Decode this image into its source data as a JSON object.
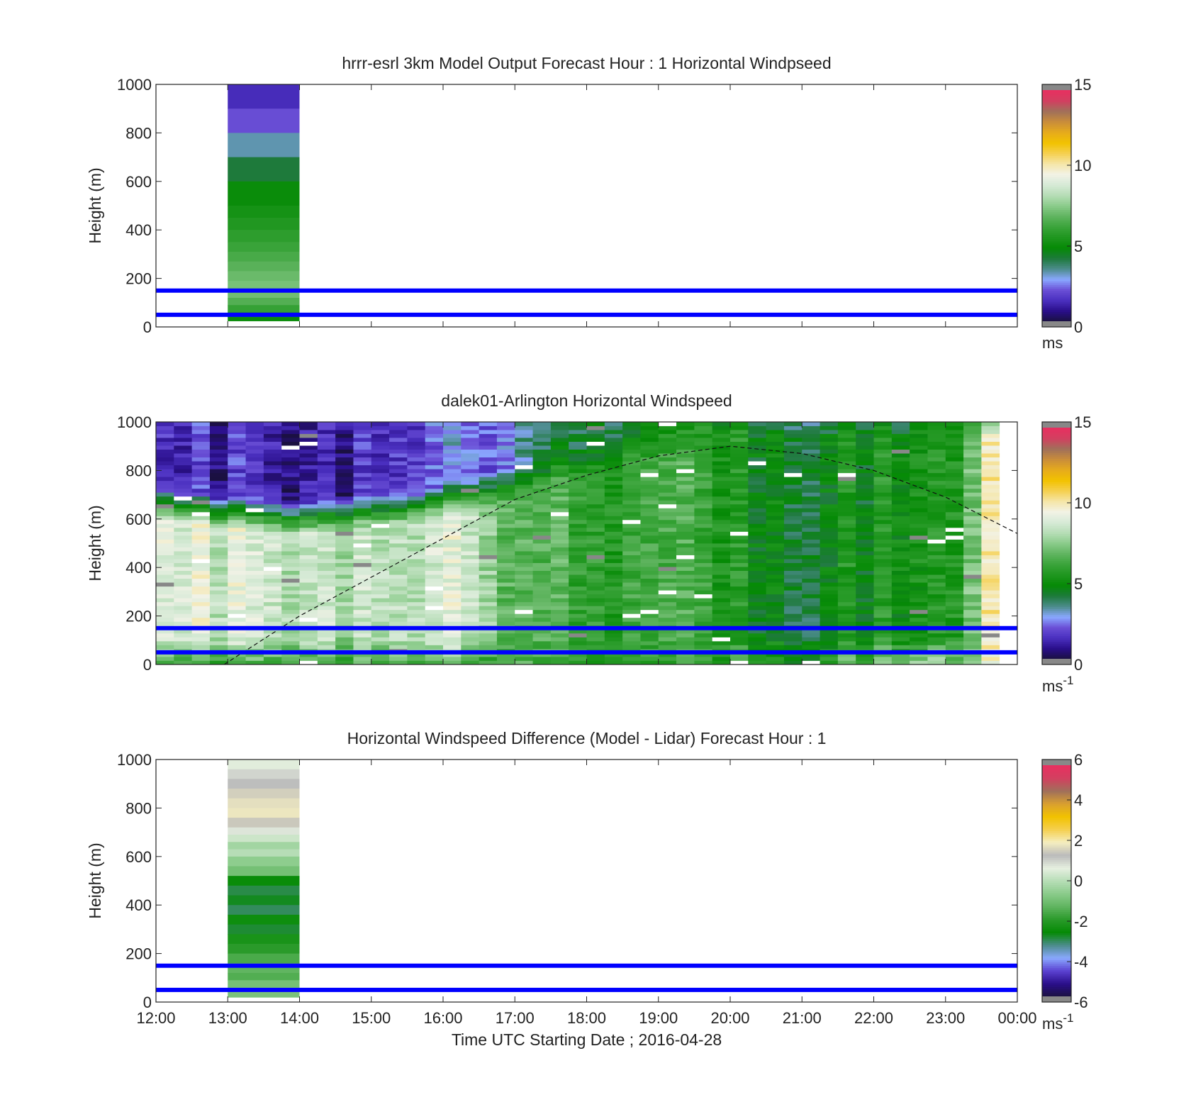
{
  "palette": {
    "windspeed": [
      "#1a1040",
      "#2a0f8a",
      "#4a2fbf",
      "#6a4fd6",
      "#8aa8ff",
      "#4c8c8c",
      "#1e7a3c",
      "#058a05",
      "#1f961f",
      "#3aa43a",
      "#5fb45f",
      "#8acb8a",
      "#b6ddb6",
      "#d6ead6",
      "#f2f2e6",
      "#f5e6a8",
      "#f5d050",
      "#f2c200",
      "#e6ab1c",
      "#c98d3a",
      "#a0705a",
      "#d24060",
      "#e83060"
    ],
    "difference": [
      "#1a1040",
      "#2a0f8a",
      "#5a40d0",
      "#8aa8ff",
      "#4c8c8c",
      "#058a05",
      "#2a9a2a",
      "#5fb45f",
      "#8acb8a",
      "#b6ddb6",
      "#e6efe0",
      "#bbbbbb",
      "#f5eec0",
      "#f5d050",
      "#f2c200",
      "#d9a030",
      "#a0705a",
      "#d24060",
      "#e83060"
    ],
    "saturation_gray": "#888888",
    "reference_line": "#0000ff"
  },
  "chart_data": [
    {
      "type": "heatmap",
      "title": "hrrr-esrl 3km Model Output   Forecast Hour : 1 Horizontal Windpseed",
      "ylabel": "Height (m)",
      "xlabel": "",
      "ylim": [
        0,
        1000
      ],
      "yticks": [
        0,
        200,
        400,
        600,
        800,
        1000
      ],
      "xlim_hours": [
        12,
        24
      ],
      "xticks": [
        "12:00",
        "13:00",
        "14:00",
        "15:00",
        "16:00",
        "17:00",
        "18:00",
        "19:00",
        "20:00",
        "21:00",
        "22:00",
        "23:00",
        "00:00"
      ],
      "show_xtick_labels": false,
      "colorbar": {
        "min": 0,
        "max": 15,
        "ticks": [
          0,
          5,
          10,
          15
        ],
        "unit": "ms",
        "unit_superscript": "",
        "palette": "windspeed"
      },
      "reference_heights_m": [
        50,
        150
      ],
      "model_column": {
        "x_start_hour": 13,
        "x_end_hour": 14,
        "levels": [
          {
            "bottom": 1000,
            "top": 900,
            "value": 1.3
          },
          {
            "bottom": 800,
            "top": 900,
            "value": 2.0
          },
          {
            "bottom": 700,
            "top": 800,
            "value": 3.2
          },
          {
            "bottom": 600,
            "top": 700,
            "value": 4.1
          },
          {
            "bottom": 500,
            "top": 600,
            "value": 4.9
          },
          {
            "bottom": 450,
            "top": 500,
            "value": 5.2
          },
          {
            "bottom": 400,
            "top": 450,
            "value": 5.5
          },
          {
            "bottom": 350,
            "top": 400,
            "value": 5.8
          },
          {
            "bottom": 310,
            "top": 350,
            "value": 6.1
          },
          {
            "bottom": 270,
            "top": 310,
            "value": 6.4
          },
          {
            "bottom": 230,
            "top": 270,
            "value": 6.7
          },
          {
            "bottom": 190,
            "top": 230,
            "value": 7.0
          },
          {
            "bottom": 150,
            "top": 190,
            "value": 7.2
          },
          {
            "bottom": 120,
            "top": 150,
            "value": 7.1
          },
          {
            "bottom": 90,
            "top": 120,
            "value": 6.6
          },
          {
            "bottom": 60,
            "top": 90,
            "value": 6.0
          },
          {
            "bottom": 40,
            "top": 60,
            "value": 5.4
          },
          {
            "bottom": 25,
            "top": 40,
            "value": 4.9
          }
        ]
      }
    },
    {
      "type": "heatmap",
      "title": "dalek01-Arlington  Horizontal Windspeed",
      "ylabel": "Height (m)",
      "xlabel": "",
      "ylim": [
        0,
        1000
      ],
      "yticks": [
        0,
        200,
        400,
        600,
        800,
        1000
      ],
      "xlim_hours": [
        12,
        24
      ],
      "xticks": [
        "12:00",
        "13:00",
        "14:00",
        "15:00",
        "16:00",
        "17:00",
        "18:00",
        "19:00",
        "20:00",
        "21:00",
        "22:00",
        "23:00",
        "00:00"
      ],
      "show_xtick_labels": false,
      "colorbar": {
        "min": 0,
        "max": 15,
        "ticks": [
          0,
          5,
          10,
          15
        ],
        "unit": "ms",
        "unit_superscript": "-1",
        "palette": "windspeed"
      },
      "reference_heights_m": [
        50,
        150
      ],
      "lidar_profile": {
        "x_start_hour": 12,
        "x_end_hour": 23.75,
        "time_bins": 47,
        "height_bins": 62,
        "boundary_layer_top_m": [
          {
            "hour": 12.0,
            "height": 680
          },
          {
            "hour": 13.0,
            "height": 640
          },
          {
            "hour": 14.0,
            "height": 620
          },
          {
            "hour": 15.0,
            "height": 640
          },
          {
            "hour": 16.0,
            "height": 680
          },
          {
            "hour": 17.0,
            "height": 760
          },
          {
            "hour": 18.0,
            "height": 840
          },
          {
            "hour": 19.0,
            "height": 920
          },
          {
            "hour": 20.0,
            "height": 1000
          },
          {
            "hour": 21.0,
            "height": 1000
          },
          {
            "hour": 22.0,
            "height": 1000
          },
          {
            "hour": 23.0,
            "height": 1000
          },
          {
            "hour": 24.0,
            "height": 1000
          }
        ],
        "mixed_layer_speed_ms": [
          {
            "hour": 12.0,
            "value": 8.8
          },
          {
            "hour": 13.0,
            "value": 8.8
          },
          {
            "hour": 14.0,
            "value": 8.7
          },
          {
            "hour": 15.0,
            "value": 8.5
          },
          {
            "hour": 16.0,
            "value": 8.6
          },
          {
            "hour": 16.6,
            "value": 8.2
          },
          {
            "hour": 17.0,
            "value": 6.2
          },
          {
            "hour": 18.0,
            "value": 6.2
          },
          {
            "hour": 19.0,
            "value": 6.3
          },
          {
            "hour": 20.0,
            "value": 5.2
          },
          {
            "hour": 21.0,
            "value": 4.8
          },
          {
            "hour": 22.0,
            "value": 5.0
          },
          {
            "hour": 23.0,
            "value": 5.4
          },
          {
            "hour": 23.5,
            "value": 8.8
          },
          {
            "hour": 23.75,
            "value": 10.2
          }
        ],
        "upper_air_speed_ms": [
          {
            "hour": 12.0,
            "value": 1.2
          },
          {
            "hour": 14.0,
            "value": 1.2
          },
          {
            "hour": 15.5,
            "value": 1.8
          },
          {
            "hour": 17.0,
            "value": 2.6
          },
          {
            "hour": 18.0,
            "value": 4.5
          },
          {
            "hour": 20.0,
            "value": 4.6
          },
          {
            "hour": 21.0,
            "value": 3.4
          },
          {
            "hour": 22.0,
            "value": 3.2
          },
          {
            "hour": 23.0,
            "value": 4.2
          },
          {
            "hour": 24.0,
            "value": 6.5
          }
        ],
        "surface_speed_ms": [
          {
            "hour": 12.0,
            "value": 6.0
          },
          {
            "hour": 15.0,
            "value": 6.6
          },
          {
            "hour": 18.0,
            "value": 5.8
          },
          {
            "hour": 21.0,
            "value": 5.6
          },
          {
            "hour": 23.5,
            "value": 8.6
          },
          {
            "hour": 24.0,
            "value": 9.5
          }
        ]
      },
      "mixing_height_curve": {
        "style": "dashed",
        "points": [
          {
            "hour": 12.95,
            "height": 0
          },
          {
            "hour": 14.0,
            "height": 200
          },
          {
            "hour": 15.0,
            "height": 360
          },
          {
            "hour": 16.0,
            "height": 520
          },
          {
            "hour": 17.0,
            "height": 680
          },
          {
            "hour": 18.0,
            "height": 780
          },
          {
            "hour": 19.0,
            "height": 860
          },
          {
            "hour": 20.0,
            "height": 900
          },
          {
            "hour": 21.0,
            "height": 870
          },
          {
            "hour": 22.0,
            "height": 800
          },
          {
            "hour": 23.0,
            "height": 690
          },
          {
            "hour": 24.0,
            "height": 540
          }
        ]
      }
    },
    {
      "type": "heatmap",
      "title": "Horizontal Windspeed Difference (Model - Lidar) Forecast Hour : 1",
      "ylabel": "Height (m)",
      "xlabel": "Time UTC  Starting Date ; 2016-04-28",
      "ylim": [
        0,
        1000
      ],
      "yticks": [
        0,
        200,
        400,
        600,
        800,
        1000
      ],
      "xlim_hours": [
        12,
        24
      ],
      "xticks": [
        "12:00",
        "13:00",
        "14:00",
        "15:00",
        "16:00",
        "17:00",
        "18:00",
        "19:00",
        "20:00",
        "21:00",
        "22:00",
        "23:00",
        "00:00"
      ],
      "show_xtick_labels": true,
      "colorbar": {
        "min": -6,
        "max": 6,
        "ticks": [
          -6,
          -4,
          -2,
          0,
          2,
          4,
          6
        ],
        "unit": "ms",
        "unit_superscript": "-1",
        "palette": "difference"
      },
      "reference_heights_m": [
        50,
        150
      ],
      "model_column": {
        "x_start_hour": 13,
        "x_end_hour": 14,
        "levels": [
          {
            "bottom": 960,
            "top": 1000,
            "value": 0.6
          },
          {
            "bottom": 920,
            "top": 960,
            "value": 1.0
          },
          {
            "bottom": 880,
            "top": 920,
            "value": 1.3
          },
          {
            "bottom": 840,
            "top": 880,
            "value": 1.6
          },
          {
            "bottom": 800,
            "top": 840,
            "value": 1.8
          },
          {
            "bottom": 760,
            "top": 800,
            "value": 1.9
          },
          {
            "bottom": 720,
            "top": 760,
            "value": 1.5
          },
          {
            "bottom": 690,
            "top": 720,
            "value": 0.8
          },
          {
            "bottom": 660,
            "top": 690,
            "value": 0.3
          },
          {
            "bottom": 630,
            "top": 660,
            "value": -0.3
          },
          {
            "bottom": 600,
            "top": 630,
            "value": 0.0
          },
          {
            "bottom": 560,
            "top": 600,
            "value": -0.6
          },
          {
            "bottom": 520,
            "top": 560,
            "value": -1.0
          },
          {
            "bottom": 480,
            "top": 520,
            "value": -2.6
          },
          {
            "bottom": 440,
            "top": 480,
            "value": -3.0
          },
          {
            "bottom": 400,
            "top": 440,
            "value": -2.8
          },
          {
            "bottom": 360,
            "top": 400,
            "value": -3.1
          },
          {
            "bottom": 320,
            "top": 360,
            "value": -2.5
          },
          {
            "bottom": 280,
            "top": 320,
            "value": -2.9
          },
          {
            "bottom": 240,
            "top": 280,
            "value": -2.3
          },
          {
            "bottom": 200,
            "top": 240,
            "value": -2.0
          },
          {
            "bottom": 160,
            "top": 200,
            "value": -1.6
          },
          {
            "bottom": 120,
            "top": 160,
            "value": -1.3
          },
          {
            "bottom": 90,
            "top": 120,
            "value": -1.5
          },
          {
            "bottom": 60,
            "top": 90,
            "value": -1.0
          },
          {
            "bottom": 40,
            "top": 60,
            "value": -0.7
          },
          {
            "bottom": 20,
            "top": 40,
            "value": -0.9
          }
        ]
      }
    }
  ]
}
